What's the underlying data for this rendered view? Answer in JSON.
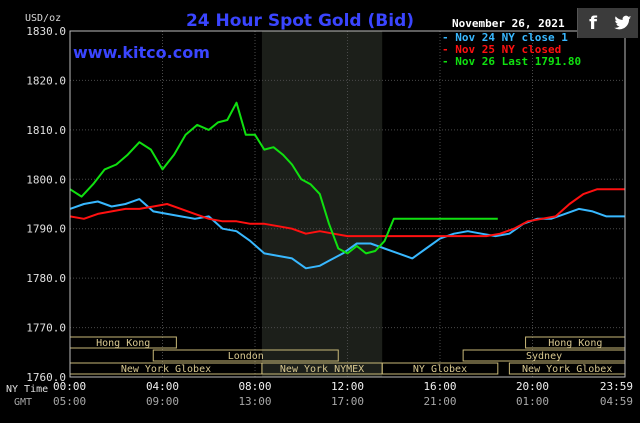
{
  "chart_data": {
    "type": "line",
    "title": "24 Hour Spot Gold (Bid)",
    "watermark": "www.kitco.com",
    "date_label": "November 26, 2021",
    "y_unit_label": "USD/oz",
    "ylim": [
      1760,
      1830
    ],
    "y_ticks": [
      "1830.0",
      "1820.0",
      "1810.0",
      "1800.0",
      "1790.0",
      "1780.0",
      "1770.0",
      "1760.0"
    ],
    "y_tick_values": [
      1830,
      1820,
      1810,
      1800,
      1790,
      1780,
      1770,
      1760
    ],
    "xlim": [
      0,
      24
    ],
    "x_tick_values": [
      0,
      4,
      8,
      12,
      16,
      20,
      24
    ],
    "x_row_label_ny": "NY Time",
    "x_row_label_gmt": "GMT",
    "x_ticks_ny": [
      "00:00",
      "04:00",
      "08:00",
      "12:00",
      "16:00",
      "20:00",
      "23:59"
    ],
    "x_ticks_gmt": [
      "05:00",
      "09:00",
      "13:00",
      "17:00",
      "21:00",
      "01:00",
      "04:59"
    ],
    "nymex_session_hours": [
      8.3,
      13.5
    ],
    "sessions": [
      {
        "name": "Hong Kong",
        "start": 0,
        "end": 4.6,
        "row": 0
      },
      {
        "name": "Hong Kong",
        "start": 19.7,
        "end": 24,
        "row": 0
      },
      {
        "name": "London",
        "start": 3.6,
        "end": 11.6,
        "row": 1
      },
      {
        "name": "Sydney",
        "start": 17.0,
        "end": 24,
        "row": 1
      },
      {
        "name": "New York Globex",
        "start": 0,
        "end": 8.3,
        "row": 2
      },
      {
        "name": "New York NYMEX",
        "start": 8.3,
        "end": 13.5,
        "row": 2
      },
      {
        "name": "NY Globex",
        "start": 13.5,
        "end": 18.5,
        "row": 2
      },
      {
        "name": "New York Globex",
        "start": 19.0,
        "end": 24,
        "row": 2
      }
    ],
    "legend_placement": "top-right",
    "series": [
      {
        "name": "Nov 24 NY close 1",
        "legend": "- Nov 24 NY close 1",
        "color": "#38b8ff",
        "x": [
          0,
          0.6,
          1.2,
          1.8,
          2.4,
          3.0,
          3.6,
          4.2,
          4.8,
          5.4,
          6.0,
          6.6,
          7.2,
          7.8,
          8.4,
          9.0,
          9.6,
          10.2,
          10.8,
          11.2,
          11.8,
          12.4,
          13.0,
          13.6,
          14.2,
          14.8,
          15.4,
          16.0,
          16.6,
          17.2,
          17.8,
          18.4,
          19.0,
          19.6,
          20.2,
          20.8,
          21.4,
          22.0,
          22.6,
          23.2,
          23.99
        ],
        "values": [
          1794,
          1795,
          1795.5,
          1794.5,
          1795,
          1796,
          1793.5,
          1793,
          1792.5,
          1792,
          1792.5,
          1790,
          1789.5,
          1787.5,
          1785,
          1784.5,
          1784,
          1782,
          1782.5,
          1783.5,
          1785,
          1787,
          1787,
          1786,
          1785,
          1784,
          1786,
          1788,
          1789,
          1789.5,
          1789,
          1788.5,
          1789,
          1791,
          1792,
          1792,
          1793,
          1794,
          1793.5,
          1792.5,
          1792.5
        ]
      },
      {
        "name": "Nov 25 NY closed",
        "legend": "- Nov 25 NY closed",
        "color": "#ff1010",
        "x": [
          0,
          0.6,
          1.2,
          1.8,
          2.4,
          3.0,
          3.6,
          4.2,
          4.8,
          5.4,
          6.0,
          6.6,
          7.2,
          7.8,
          8.4,
          9.0,
          9.6,
          10.2,
          10.8,
          11.4,
          12.0,
          12.6,
          13.2,
          13.8,
          14.4,
          15.0,
          15.6,
          16.2,
          16.8,
          17.4,
          18.0,
          18.6,
          19.2,
          19.8,
          20.4,
          21.0,
          21.6,
          22.2,
          22.8,
          23.4,
          23.99
        ],
        "values": [
          1792.5,
          1792,
          1793,
          1793.5,
          1794,
          1794,
          1794.5,
          1795,
          1794,
          1793,
          1792,
          1791.5,
          1791.5,
          1791,
          1791,
          1790.5,
          1790,
          1789,
          1789.5,
          1789,
          1788.5,
          1788.5,
          1788.5,
          1788.5,
          1788.5,
          1788.5,
          1788.5,
          1788.5,
          1788.5,
          1788.5,
          1788.5,
          1789,
          1790,
          1791.5,
          1792,
          1792.5,
          1795,
          1797,
          1798,
          1798,
          1798
        ]
      },
      {
        "name": "Nov 26 Last 1791.80",
        "legend": "- Nov 26 Last 1791.80",
        "color": "#10e010",
        "x": [
          0,
          0.5,
          1.0,
          1.5,
          2.0,
          2.5,
          3.0,
          3.5,
          4.0,
          4.5,
          5.0,
          5.5,
          6.0,
          6.4,
          6.8,
          7.2,
          7.6,
          8.0,
          8.4,
          8.8,
          9.2,
          9.6,
          10.0,
          10.4,
          10.8,
          11.2,
          11.6,
          12.0,
          12.4,
          12.8,
          13.2,
          13.6,
          14.0,
          15.0,
          16.0,
          17.0,
          18.0,
          18.5
        ],
        "values": [
          1798,
          1796.5,
          1799,
          1802,
          1803,
          1805,
          1807.5,
          1806,
          1802,
          1805,
          1809,
          1811,
          1810,
          1811.5,
          1812,
          1815.5,
          1809,
          1809,
          1806,
          1806.5,
          1805,
          1803,
          1800,
          1799,
          1797,
          1791,
          1786,
          1785,
          1786.5,
          1785,
          1785.5,
          1787.5,
          1792,
          1792,
          1792,
          1792,
          1792,
          1792
        ]
      }
    ]
  }
}
